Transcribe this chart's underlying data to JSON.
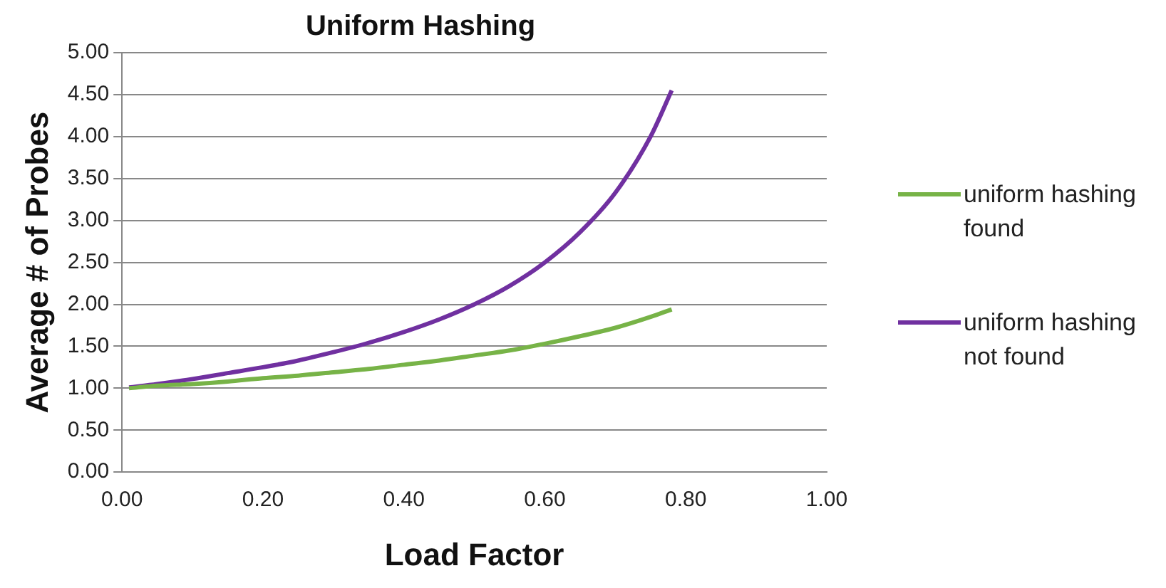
{
  "chart_data": {
    "type": "line",
    "title": "Uniform Hashing",
    "xlabel": "Load Factor",
    "ylabel": "Average # of Probes",
    "x": [
      0.01,
      0.05,
      0.1,
      0.15,
      0.2,
      0.25,
      0.3,
      0.35,
      0.4,
      0.45,
      0.5,
      0.55,
      0.6,
      0.65,
      0.7,
      0.75,
      0.78
    ],
    "series": [
      {
        "name": "uniform hashing found",
        "color": "#77b347",
        "values": [
          1.0,
          1.03,
          1.05,
          1.08,
          1.12,
          1.15,
          1.19,
          1.23,
          1.28,
          1.33,
          1.39,
          1.45,
          1.53,
          1.62,
          1.72,
          1.85,
          1.94
        ]
      },
      {
        "name": "uniform hashing not found",
        "color": "#7030a0",
        "values": [
          1.01,
          1.05,
          1.11,
          1.18,
          1.25,
          1.33,
          1.43,
          1.54,
          1.67,
          1.82,
          2.0,
          2.22,
          2.5,
          2.86,
          3.33,
          4.0,
          4.55
        ]
      }
    ],
    "xlim": [
      0,
      1
    ],
    "xticks": [
      {
        "value": 0,
        "label": "0.00"
      },
      {
        "value": 0.2,
        "label": "0.20"
      },
      {
        "value": 0.4,
        "label": "0.40"
      },
      {
        "value": 0.6,
        "label": "0.60"
      },
      {
        "value": 0.8,
        "label": "0.80"
      },
      {
        "value": 1,
        "label": "1.00"
      }
    ],
    "ylim": [
      0,
      5
    ],
    "yticks": [
      {
        "value": 0,
        "label": "0.00"
      },
      {
        "value": 0.5,
        "label": "0.50"
      },
      {
        "value": 1,
        "label": "1.00"
      },
      {
        "value": 1.5,
        "label": "1.50"
      },
      {
        "value": 2,
        "label": "2.00"
      },
      {
        "value": 2.5,
        "label": "2.50"
      },
      {
        "value": 3,
        "label": "3.00"
      },
      {
        "value": 3.5,
        "label": "3.50"
      },
      {
        "value": 4,
        "label": "4.00"
      },
      {
        "value": 4.5,
        "label": "4.50"
      },
      {
        "value": 5,
        "label": "5.00"
      }
    ],
    "grid": "y",
    "legend": "right",
    "marker": "none",
    "line_style": "solid"
  }
}
